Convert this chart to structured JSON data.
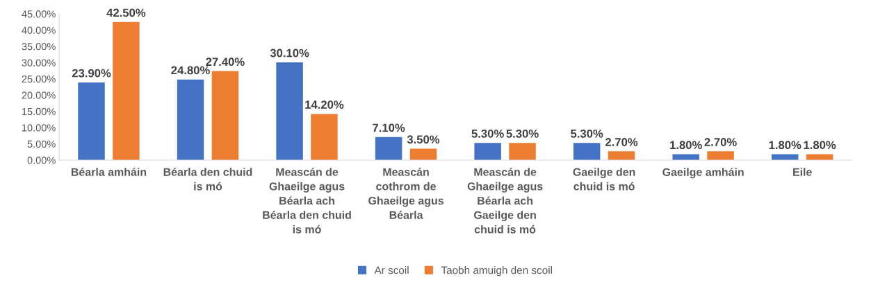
{
  "chart_data": {
    "type": "bar",
    "categories": [
      "Béarla amháin",
      "Béarla den chuid\nis mó",
      "Meascán de\nGhaeilge agus\nBéarla ach\nBéarla den chuid\nis mó",
      "Meascán\ncothrom de\nGhaeilge agus\nBéarla",
      "Meascán de\nGhaeilge agus\nBéarla ach\nGaeilge den\nchuid is mó",
      "Gaeilge den\nchuid is mó",
      "Gaeilge amháin",
      "Eile"
    ],
    "series": [
      {
        "name": "Ar scoil",
        "color": "#4472c4",
        "values": [
          23.9,
          24.8,
          30.1,
          7.1,
          5.3,
          5.3,
          1.8,
          1.8
        ],
        "value_labels": [
          "23.90%",
          "24.80%",
          "30.10%",
          "7.10%",
          "5.30%",
          "5.30%",
          "1.80%",
          "1.80%"
        ]
      },
      {
        "name": "Taobh amuigh den scoil",
        "color": "#ed7d31",
        "values": [
          42.5,
          27.4,
          14.2,
          3.5,
          5.3,
          2.7,
          2.7,
          1.8
        ],
        "value_labels": [
          "42.50%",
          "27.40%",
          "14.20%",
          "3.50%",
          "5.30%",
          "2.70%",
          "2.70%",
          "1.80%"
        ]
      }
    ],
    "ylim": [
      0,
      45
    ],
    "yticks": [
      {
        "value": 0,
        "label": "0.00%"
      },
      {
        "value": 5,
        "label": "5.00%"
      },
      {
        "value": 10,
        "label": "10.00%"
      },
      {
        "value": 15,
        "label": "15.00%"
      },
      {
        "value": 20,
        "label": "20.00%"
      },
      {
        "value": 25,
        "label": "25.00%"
      },
      {
        "value": 30,
        "label": "30.00%"
      },
      {
        "value": 35,
        "label": "35.00%"
      },
      {
        "value": 40,
        "label": "40.00%"
      },
      {
        "value": 45,
        "label": "45.00%"
      }
    ],
    "grid": false,
    "legend": "bottom"
  }
}
